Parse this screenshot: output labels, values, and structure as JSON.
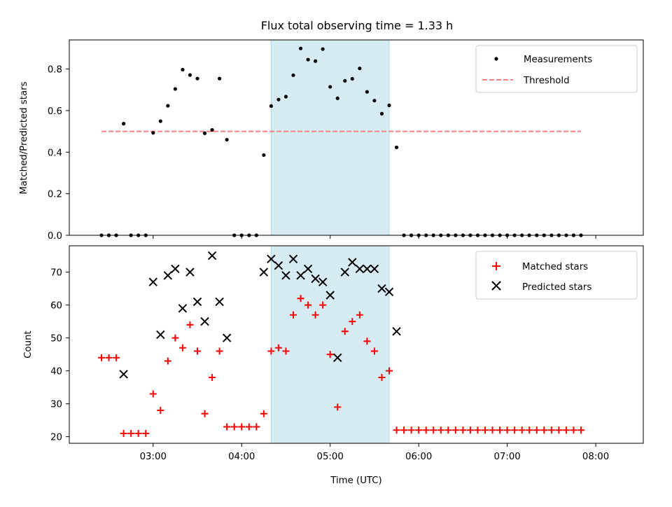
{
  "chart_data": {
    "title": "Flux total observing time = 1.33 h",
    "xlabel": "Time (UTC)",
    "x_ticks": [
      "03:00",
      "04:00",
      "05:00",
      "06:00",
      "07:00",
      "08:00"
    ],
    "shaded_interval": {
      "start": "04:20",
      "end": "05:40",
      "color": "#add8e6"
    },
    "panels": [
      {
        "type": "scatter",
        "ylabel": "Matched/Predicted stars",
        "ylim": [
          0,
          0.94
        ],
        "y_ticks": [
          "0.0",
          "0.2",
          "0.4",
          "0.6",
          "0.8"
        ],
        "legend": {
          "placement": "top-right",
          "entries": [
            "Measurements",
            "Threshold"
          ]
        },
        "threshold": {
          "name": "Threshold",
          "value": 0.5,
          "x_range": [
            "02:25",
            "07:50"
          ],
          "color": "#ff7f7f",
          "style": "dashed"
        },
        "series": [
          {
            "name": "Measurements",
            "marker": "dot",
            "color": "#000000",
            "points": [
              [
                "02:25",
                0.0
              ],
              [
                "02:30",
                0.0
              ],
              [
                "02:35",
                0.0
              ],
              [
                "02:40",
                0.537
              ],
              [
                "02:45",
                0.0
              ],
              [
                "02:50",
                0.0
              ],
              [
                "02:55",
                0.0
              ],
              [
                "03:00",
                0.493
              ],
              [
                "03:05",
                0.549
              ],
              [
                "03:10",
                0.623
              ],
              [
                "03:15",
                0.704
              ],
              [
                "03:20",
                0.797
              ],
              [
                "03:25",
                0.771
              ],
              [
                "03:30",
                0.754
              ],
              [
                "03:35",
                0.491
              ],
              [
                "03:40",
                0.507
              ],
              [
                "03:45",
                0.754
              ],
              [
                "03:50",
                0.46
              ],
              [
                "03:55",
                0.0
              ],
              [
                "04:00",
                0.0
              ],
              [
                "04:05",
                0.0
              ],
              [
                "04:10",
                0.0
              ],
              [
                "04:15",
                0.386
              ],
              [
                "04:20",
                0.622
              ],
              [
                "04:25",
                0.653
              ],
              [
                "04:30",
                0.667
              ],
              [
                "04:35",
                0.77
              ],
              [
                "04:40",
                0.899
              ],
              [
                "04:45",
                0.845
              ],
              [
                "04:50",
                0.838
              ],
              [
                "04:55",
                0.896
              ],
              [
                "05:00",
                0.714
              ],
              [
                "05:05",
                0.659
              ],
              [
                "05:10",
                0.743
              ],
              [
                "05:15",
                0.753
              ],
              [
                "05:20",
                0.803
              ],
              [
                "05:25",
                0.69
              ],
              [
                "05:30",
                0.648
              ],
              [
                "05:35",
                0.585
              ],
              [
                "05:40",
                0.625
              ],
              [
                "05:45",
                0.423
              ],
              [
                "05:50",
                0.0
              ],
              [
                "05:55",
                0.0
              ],
              [
                "06:00",
                0.0
              ],
              [
                "06:05",
                0.0
              ],
              [
                "06:10",
                0.0
              ],
              [
                "06:15",
                0.0
              ],
              [
                "06:20",
                0.0
              ],
              [
                "06:25",
                0.0
              ],
              [
                "06:30",
                0.0
              ],
              [
                "06:35",
                0.0
              ],
              [
                "06:40",
                0.0
              ],
              [
                "06:45",
                0.0
              ],
              [
                "06:50",
                0.0
              ],
              [
                "06:55",
                0.0
              ],
              [
                "07:00",
                0.0
              ],
              [
                "07:05",
                0.0
              ],
              [
                "07:10",
                0.0
              ],
              [
                "07:15",
                0.0
              ],
              [
                "07:20",
                0.0
              ],
              [
                "07:25",
                0.0
              ],
              [
                "07:30",
                0.0
              ],
              [
                "07:35",
                0.0
              ],
              [
                "07:40",
                0.0
              ],
              [
                "07:45",
                0.0
              ],
              [
                "07:50",
                0.0
              ]
            ]
          }
        ]
      },
      {
        "type": "scatter",
        "ylabel": "Count",
        "ylim": [
          18,
          78
        ],
        "y_ticks": [
          "20",
          "30",
          "40",
          "50",
          "60",
          "70"
        ],
        "legend": {
          "placement": "top-right",
          "entries": [
            "Matched stars",
            "Predicted stars"
          ]
        },
        "series": [
          {
            "name": "Matched stars",
            "marker": "plus",
            "color": "#ff0000",
            "points": [
              [
                "02:25",
                44
              ],
              [
                "02:30",
                44
              ],
              [
                "02:35",
                44
              ],
              [
                "02:40",
                21
              ],
              [
                "02:45",
                21
              ],
              [
                "02:50",
                21
              ],
              [
                "02:55",
                21
              ],
              [
                "03:00",
                33
              ],
              [
                "03:05",
                28
              ],
              [
                "03:10",
                43
              ],
              [
                "03:15",
                50
              ],
              [
                "03:20",
                47
              ],
              [
                "03:25",
                54
              ],
              [
                "03:30",
                46
              ],
              [
                "03:35",
                27
              ],
              [
                "03:40",
                38
              ],
              [
                "03:45",
                46
              ],
              [
                "03:50",
                23
              ],
              [
                "03:55",
                23
              ],
              [
                "04:00",
                23
              ],
              [
                "04:05",
                23
              ],
              [
                "04:10",
                23
              ],
              [
                "04:15",
                27
              ],
              [
                "04:20",
                46
              ],
              [
                "04:25",
                47
              ],
              [
                "04:30",
                46
              ],
              [
                "04:35",
                57
              ],
              [
                "04:40",
                62
              ],
              [
                "04:45",
                60
              ],
              [
                "04:50",
                57
              ],
              [
                "04:55",
                60
              ],
              [
                "05:00",
                45
              ],
              [
                "05:05",
                29
              ],
              [
                "05:10",
                52
              ],
              [
                "05:15",
                55
              ],
              [
                "05:20",
                57
              ],
              [
                "05:25",
                49
              ],
              [
                "05:30",
                46
              ],
              [
                "05:35",
                38
              ],
              [
                "05:40",
                40
              ],
              [
                "05:45",
                22
              ],
              [
                "05:50",
                22
              ],
              [
                "05:55",
                22
              ],
              [
                "06:00",
                22
              ],
              [
                "06:05",
                22
              ],
              [
                "06:10",
                22
              ],
              [
                "06:15",
                22
              ],
              [
                "06:20",
                22
              ],
              [
                "06:25",
                22
              ],
              [
                "06:30",
                22
              ],
              [
                "06:35",
                22
              ],
              [
                "06:40",
                22
              ],
              [
                "06:45",
                22
              ],
              [
                "06:50",
                22
              ],
              [
                "06:55",
                22
              ],
              [
                "07:00",
                22
              ],
              [
                "07:05",
                22
              ],
              [
                "07:10",
                22
              ],
              [
                "07:15",
                22
              ],
              [
                "07:20",
                22
              ],
              [
                "07:25",
                22
              ],
              [
                "07:30",
                22
              ],
              [
                "07:35",
                22
              ],
              [
                "07:40",
                22
              ],
              [
                "07:45",
                22
              ],
              [
                "07:50",
                22
              ]
            ]
          },
          {
            "name": "Predicted stars",
            "marker": "x",
            "color": "#000000",
            "points": [
              [
                "02:40",
                39
              ],
              [
                "03:00",
                67
              ],
              [
                "03:05",
                51
              ],
              [
                "03:10",
                69
              ],
              [
                "03:15",
                71
              ],
              [
                "03:20",
                59
              ],
              [
                "03:25",
                70
              ],
              [
                "03:30",
                61
              ],
              [
                "03:35",
                55
              ],
              [
                "03:40",
                75
              ],
              [
                "03:45",
                61
              ],
              [
                "03:50",
                50
              ],
              [
                "04:15",
                70
              ],
              [
                "04:20",
                74
              ],
              [
                "04:25",
                72
              ],
              [
                "04:30",
                69
              ],
              [
                "04:35",
                74
              ],
              [
                "04:40",
                69
              ],
              [
                "04:45",
                71
              ],
              [
                "04:50",
                68
              ],
              [
                "04:55",
                67
              ],
              [
                "05:00",
                63
              ],
              [
                "05:05",
                44
              ],
              [
                "05:10",
                70
              ],
              [
                "05:15",
                73
              ],
              [
                "05:20",
                71
              ],
              [
                "05:25",
                71
              ],
              [
                "05:30",
                71
              ],
              [
                "05:35",
                65
              ],
              [
                "05:40",
                64
              ],
              [
                "05:45",
                52
              ]
            ]
          }
        ]
      }
    ]
  }
}
